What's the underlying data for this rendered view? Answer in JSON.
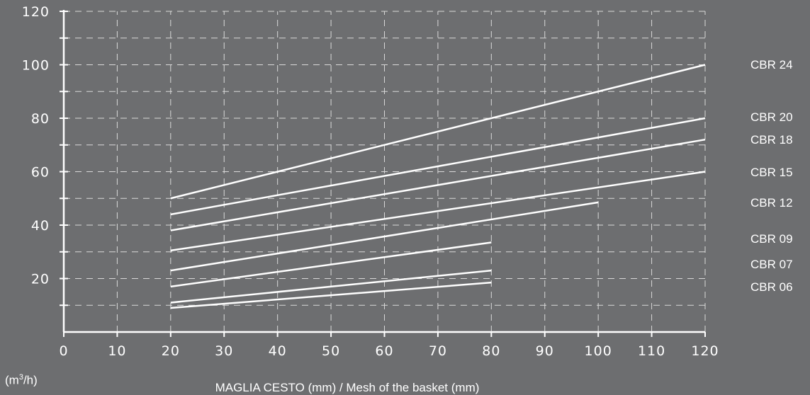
{
  "chart_data": {
    "type": "line",
    "ylabel": "m3/h",
    "xlabel": "MAGLIA CESTO (mm) / Mesh of the basket (mm)",
    "xlim": [
      0,
      120
    ],
    "ylim": [
      0,
      120
    ],
    "x_ticks": [
      0,
      10,
      20,
      30,
      40,
      50,
      60,
      70,
      80,
      90,
      100,
      110,
      120
    ],
    "y_ticks": [
      20,
      40,
      60,
      80,
      100,
      120
    ],
    "grid": true,
    "legend_placement": "right",
    "series": [
      {
        "name": "CBR 24",
        "x": [
          20,
          120
        ],
        "y": [
          50,
          100
        ]
      },
      {
        "name": "CBR 20",
        "x": [
          20,
          120
        ],
        "y": [
          44,
          80
        ]
      },
      {
        "name": "CBR 18",
        "x": [
          20,
          120
        ],
        "y": [
          38,
          72
        ]
      },
      {
        "name": "CBR 15",
        "x": [
          20,
          120
        ],
        "y": [
          30.5,
          60
        ]
      },
      {
        "name": "CBR 12",
        "x": [
          20,
          100
        ],
        "y": [
          23,
          48.5
        ]
      },
      {
        "name": "CBR 09",
        "x": [
          20,
          80
        ],
        "y": [
          17,
          33.5
        ]
      },
      {
        "name": "CBR 07",
        "x": [
          20,
          80
        ],
        "y": [
          11,
          23
        ]
      },
      {
        "name": "CBR 06",
        "x": [
          20,
          80
        ],
        "y": [
          9,
          18.5
        ]
      }
    ],
    "colors": {
      "background": "#6d6e70",
      "line": "#ffffff",
      "grid": "#d9d9d9"
    }
  },
  "unit_label": {
    "base": "(m",
    "sup": "3",
    "tail": "/h)"
  }
}
